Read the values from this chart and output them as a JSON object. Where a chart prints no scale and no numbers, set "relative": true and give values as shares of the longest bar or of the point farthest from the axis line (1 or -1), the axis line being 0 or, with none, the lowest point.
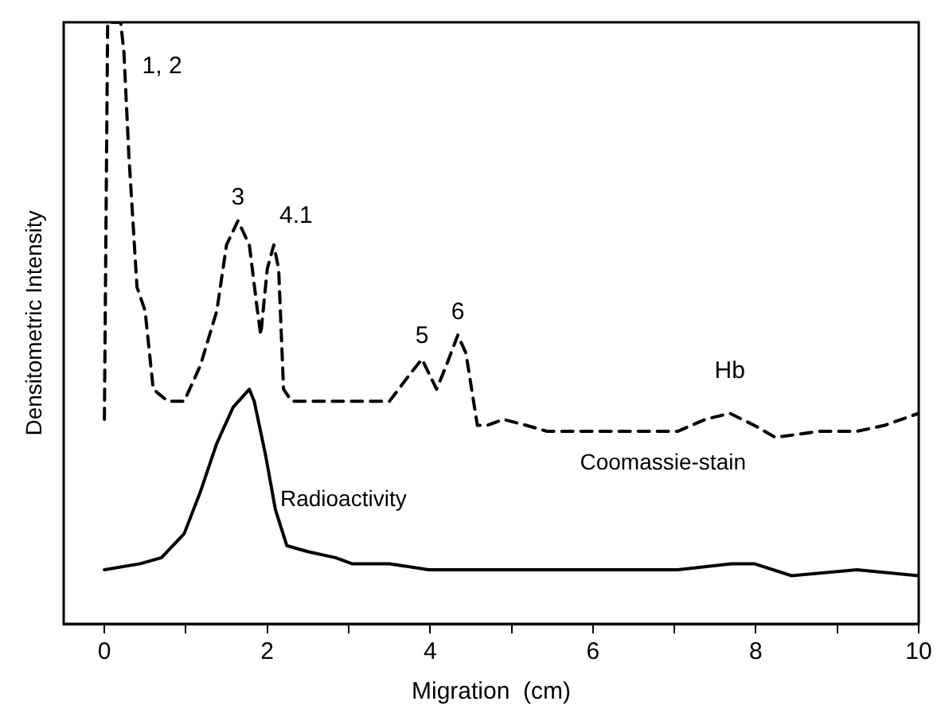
{
  "chart_data": {
    "type": "line",
    "relative": true,
    "xlabel": "Migration  (cm)",
    "ylabel": "Densitometric Intensity",
    "xlim": [
      -0.5,
      10
    ],
    "xticks": [
      0,
      {
        "value": 1,
        "label": null
      },
      2,
      {
        "value": 3,
        "label": null
      },
      4,
      {
        "value": 5,
        "label": null
      },
      6,
      {
        "value": 7,
        "label": null
      },
      8,
      {
        "value": 9,
        "label": null
      },
      10
    ],
    "grid": false,
    "legend": false,
    "marker": "none",
    "series": [
      {
        "name": "Coomassie-stain",
        "color": "#000000",
        "line_style": "dashed",
        "x": [
          0,
          0.04,
          0.2,
          0.24,
          0.3,
          0.4,
          0.5,
          0.6,
          0.78,
          0.98,
          1.18,
          1.38,
          1.5,
          1.64,
          1.78,
          1.88,
          1.92,
          2.0,
          2.08,
          2.14,
          2.2,
          2.3,
          2.58,
          2.98,
          3.5,
          3.78,
          3.9,
          4.08,
          4.2,
          4.34,
          4.44,
          4.58,
          4.7,
          4.9,
          5.18,
          5.44,
          5.84,
          6.44,
          7.04,
          7.38,
          7.68,
          7.98,
          8.24,
          8.78,
          9.24,
          9.58,
          10.0
        ],
        "values": [
          0.34,
          1,
          1,
          0.95,
          0.78,
          0.56,
          0.52,
          0.39,
          0.37,
          0.37,
          0.43,
          0.52,
          0.63,
          0.67,
          0.63,
          0.52,
          0.48,
          0.59,
          0.63,
          0.59,
          0.39,
          0.37,
          0.37,
          0.37,
          0.37,
          0.42,
          0.44,
          0.39,
          0.43,
          0.48,
          0.45,
          0.33,
          0.33,
          0.34,
          0.33,
          0.32,
          0.32,
          0.32,
          0.32,
          0.34,
          0.35,
          0.33,
          0.31,
          0.32,
          0.32,
          0.33,
          0.35
        ]
      },
      {
        "name": "Radioactivity",
        "color": "#000000",
        "line_style": "solid",
        "x": [
          0,
          0.44,
          0.7,
          0.98,
          1.18,
          1.38,
          1.58,
          1.78,
          1.84,
          1.98,
          2.1,
          2.24,
          2.5,
          2.84,
          3.04,
          3.5,
          3.98,
          4.58,
          5.04,
          5.58,
          6.24,
          7.04,
          7.7,
          7.98,
          8.44,
          9.24,
          10.0
        ],
        "values": [
          0.09,
          0.1,
          0.11,
          0.15,
          0.22,
          0.3,
          0.36,
          0.39,
          0.37,
          0.28,
          0.19,
          0.13,
          0.12,
          0.11,
          0.1,
          0.1,
          0.09,
          0.09,
          0.09,
          0.09,
          0.09,
          0.09,
          0.1,
          0.1,
          0.08,
          0.09,
          0.08
        ]
      }
    ],
    "annotations": [
      {
        "text": "1, 2",
        "x": 0.2,
        "y": 1
      },
      {
        "text": "3",
        "x": 1.64,
        "y": 0.67
      },
      {
        "text": "4.1",
        "x": 2.08,
        "y": 0.63
      },
      {
        "text": "5",
        "x": 3.9,
        "y": 0.44
      },
      {
        "text": "6",
        "x": 4.34,
        "y": 0.48
      },
      {
        "text": "Hb",
        "x": 7.68,
        "y": 0.35
      }
    ]
  }
}
